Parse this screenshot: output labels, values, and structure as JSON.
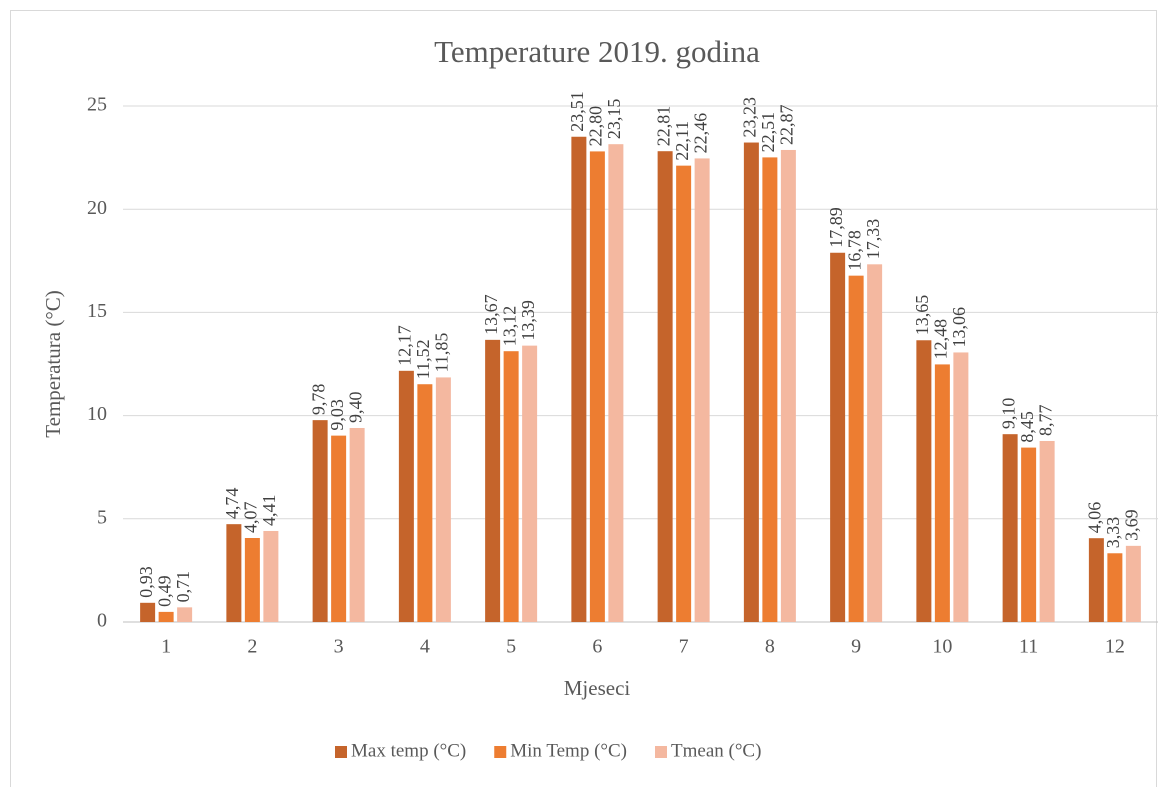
{
  "chart_data": {
    "type": "bar",
    "title": "Temperature 2019. godina",
    "x_label": "Mjeseci",
    "y_label": "Temperatura (°C)",
    "categories": [
      "1",
      "2",
      "3",
      "4",
      "5",
      "6",
      "7",
      "8",
      "9",
      "10",
      "11",
      "12"
    ],
    "series": [
      {
        "name": "Max temp (°C)",
        "color": "#c5642b",
        "values": [
          0.93,
          4.74,
          9.78,
          12.17,
          13.67,
          23.51,
          22.81,
          23.23,
          17.89,
          13.65,
          9.1,
          4.06
        ],
        "value_labels": [
          "0,93",
          "4,74",
          "9,78",
          "12,17",
          "13,67",
          "23,51",
          "22,81",
          "23,23",
          "17,89",
          "13,65",
          "9,10",
          "4,06"
        ]
      },
      {
        "name": "Min Temp (°C)",
        "color": "#ed7d31",
        "values": [
          0.49,
          4.07,
          9.03,
          11.52,
          13.12,
          22.8,
          22.11,
          22.51,
          16.78,
          12.48,
          8.45,
          3.33
        ],
        "value_labels": [
          "0,49",
          "4,07",
          "9,03",
          "11,52",
          "13,12",
          "22,80",
          "22,11",
          "22,51",
          "16,78",
          "12,48",
          "8,45",
          "3,33"
        ]
      },
      {
        "name": "Tmean (°C)",
        "color": "#f4b8a0",
        "values": [
          0.71,
          4.41,
          9.4,
          11.85,
          13.39,
          23.15,
          22.46,
          22.87,
          17.33,
          13.06,
          8.77,
          3.69
        ],
        "value_labels": [
          "0,71",
          "4,41",
          "9,40",
          "11,85",
          "13,39",
          "23,15",
          "22,46",
          "22,87",
          "17,33",
          "13,06",
          "8,77",
          "3,69"
        ]
      }
    ],
    "ylim": [
      0,
      25
    ],
    "yticks": [
      0,
      5,
      10,
      15,
      20,
      25
    ],
    "grid": true,
    "legend": "bottom"
  }
}
